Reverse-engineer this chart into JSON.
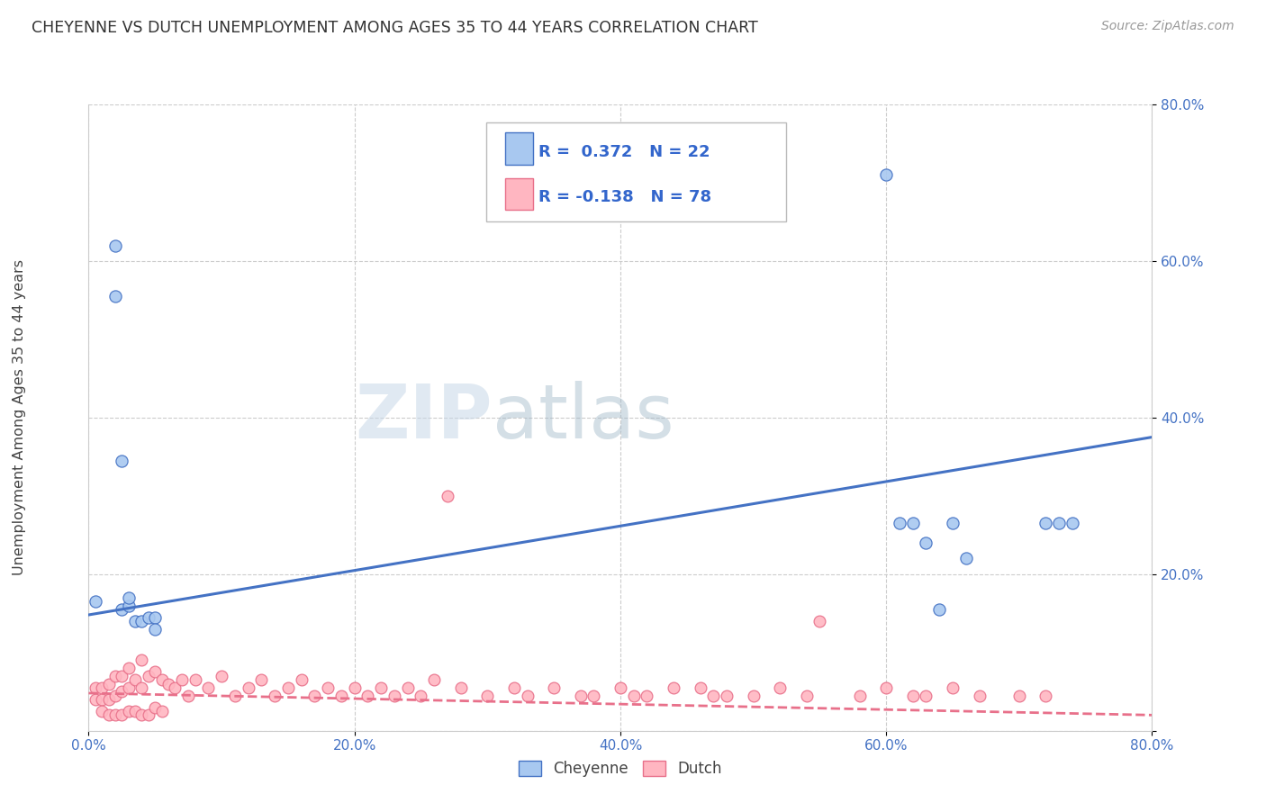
{
  "title": "CHEYENNE VS DUTCH UNEMPLOYMENT AMONG AGES 35 TO 44 YEARS CORRELATION CHART",
  "source": "Source: ZipAtlas.com",
  "ylabel": "Unemployment Among Ages 35 to 44 years",
  "xlim": [
    0.0,
    0.8
  ],
  "ylim": [
    0.0,
    0.8
  ],
  "xtick_labels": [
    "0.0%",
    "20.0%",
    "40.0%",
    "60.0%",
    "80.0%"
  ],
  "xtick_vals": [
    0.0,
    0.2,
    0.4,
    0.6,
    0.8
  ],
  "ytick_labels": [
    "",
    "20.0%",
    "40.0%",
    "60.0%",
    "80.0%"
  ],
  "ytick_vals": [
    0.0,
    0.2,
    0.4,
    0.6,
    0.8
  ],
  "cheyenne_R": 0.372,
  "cheyenne_N": 22,
  "dutch_R": -0.138,
  "dutch_N": 78,
  "cheyenne_color": "#a8c8f0",
  "cheyenne_line_color": "#4472c4",
  "dutch_color": "#ffb6c1",
  "dutch_line_color": "#e8708a",
  "watermark_zip": "ZIP",
  "watermark_atlas": "atlas",
  "cheyenne_x": [
    0.005,
    0.02,
    0.02,
    0.025,
    0.025,
    0.03,
    0.03,
    0.035,
    0.04,
    0.045,
    0.05,
    0.05,
    0.6,
    0.61,
    0.62,
    0.63,
    0.64,
    0.65,
    0.66,
    0.72,
    0.73,
    0.74
  ],
  "cheyenne_y": [
    0.165,
    0.62,
    0.555,
    0.345,
    0.155,
    0.16,
    0.17,
    0.14,
    0.14,
    0.145,
    0.145,
    0.13,
    0.71,
    0.265,
    0.265,
    0.24,
    0.155,
    0.265,
    0.22,
    0.265,
    0.265,
    0.265
  ],
  "dutch_x": [
    0.005,
    0.005,
    0.01,
    0.01,
    0.01,
    0.015,
    0.015,
    0.015,
    0.02,
    0.02,
    0.02,
    0.025,
    0.025,
    0.025,
    0.03,
    0.03,
    0.03,
    0.035,
    0.035,
    0.04,
    0.04,
    0.04,
    0.045,
    0.045,
    0.05,
    0.05,
    0.055,
    0.055,
    0.06,
    0.065,
    0.07,
    0.075,
    0.08,
    0.09,
    0.1,
    0.11,
    0.12,
    0.13,
    0.14,
    0.15,
    0.16,
    0.17,
    0.18,
    0.19,
    0.2,
    0.21,
    0.22,
    0.23,
    0.24,
    0.25,
    0.26,
    0.27,
    0.28,
    0.3,
    0.32,
    0.33,
    0.35,
    0.37,
    0.38,
    0.4,
    0.41,
    0.42,
    0.44,
    0.46,
    0.47,
    0.48,
    0.5,
    0.52,
    0.54,
    0.55,
    0.58,
    0.6,
    0.62,
    0.63,
    0.65,
    0.67,
    0.7,
    0.72
  ],
  "dutch_y": [
    0.055,
    0.04,
    0.055,
    0.04,
    0.025,
    0.06,
    0.04,
    0.02,
    0.07,
    0.045,
    0.02,
    0.07,
    0.05,
    0.02,
    0.08,
    0.055,
    0.025,
    0.065,
    0.025,
    0.09,
    0.055,
    0.02,
    0.07,
    0.02,
    0.075,
    0.03,
    0.065,
    0.025,
    0.06,
    0.055,
    0.065,
    0.045,
    0.065,
    0.055,
    0.07,
    0.045,
    0.055,
    0.065,
    0.045,
    0.055,
    0.065,
    0.045,
    0.055,
    0.045,
    0.055,
    0.045,
    0.055,
    0.045,
    0.055,
    0.045,
    0.065,
    0.3,
    0.055,
    0.045,
    0.055,
    0.045,
    0.055,
    0.045,
    0.045,
    0.055,
    0.045,
    0.045,
    0.055,
    0.055,
    0.045,
    0.045,
    0.045,
    0.055,
    0.045,
    0.14,
    0.045,
    0.055,
    0.045,
    0.045,
    0.055,
    0.045,
    0.045,
    0.045
  ],
  "cheyenne_trend_x0": 0.0,
  "cheyenne_trend_y0": 0.148,
  "cheyenne_trend_x1": 0.8,
  "cheyenne_trend_y1": 0.375,
  "dutch_trend_x0": 0.0,
  "dutch_trend_y0": 0.048,
  "dutch_trend_x1": 0.8,
  "dutch_trend_y1": 0.02
}
